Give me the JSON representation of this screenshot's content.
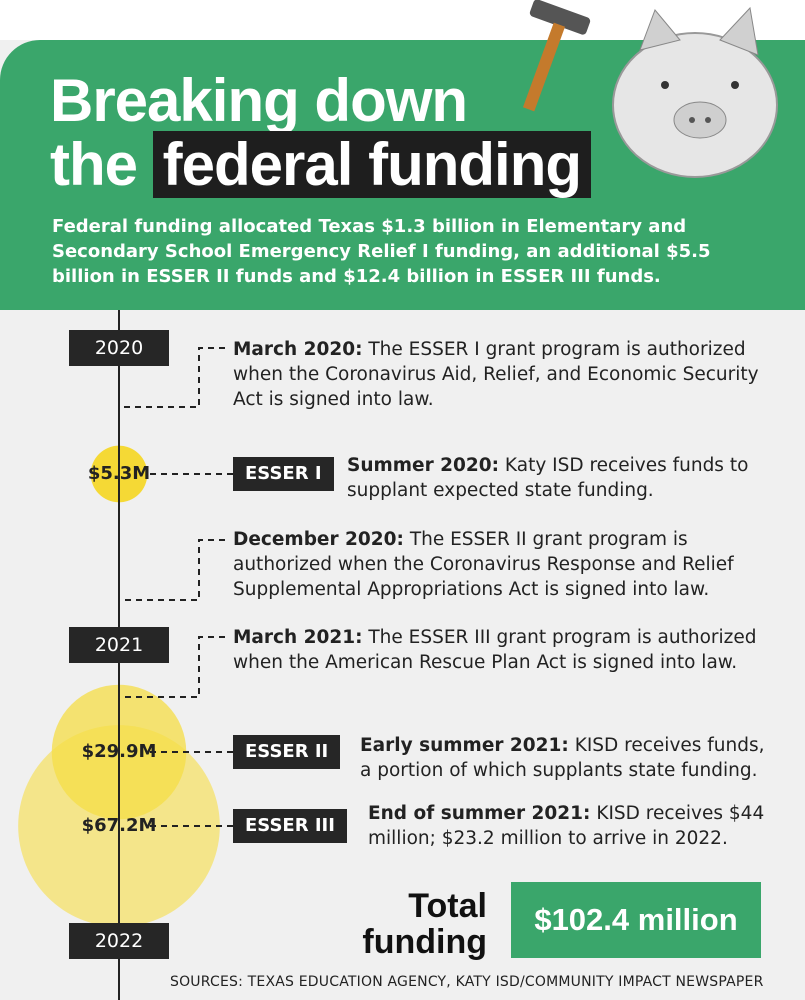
{
  "header": {
    "title_line1": "Breaking down",
    "title_the": "the",
    "title_highlight": "federal funding",
    "intro": "Federal funding allocated Texas $1.3 billion in Elementary and Secondary School Emergency Relief I funding, an additional $5.5 billion in ESSER II funds and $12.4 billion in ESSER III funds."
  },
  "timeline": {
    "years": [
      "2020",
      "2021",
      "2022"
    ],
    "events": [
      {
        "lead": "March 2020:",
        "text": " The ESSER I grant program is authorized when the Coronavirus Aid, Relief, and Economic Security Act is signed into law."
      },
      {
        "lead": "Summer 2020:",
        "text": " Katy ISD receives funds to supplant expected state funding."
      },
      {
        "lead": "December 2020:",
        "text": " The ESSER II grant program is authorized when the Coronavirus Response and Relief Supplemental Appropriations Act is signed into law."
      },
      {
        "lead": "March 2021:",
        "text": " The ESSER III grant program is authorized when the American Rescue Plan Act is signed into law."
      },
      {
        "lead": "Early summer 2021:",
        "text": " KISD receives funds, a portion of which supplants state funding."
      },
      {
        "lead": "End of summer 2021:",
        "text": " KISD receives $44 million; $23.2 million to arrive in 2022."
      }
    ],
    "grants": [
      {
        "badge": "ESSER I",
        "amount": "$5.3M",
        "value": 5.3
      },
      {
        "badge": "ESSER II",
        "amount": "$29.9M",
        "value": 29.9
      },
      {
        "badge": "ESSER III",
        "amount": "$67.2M",
        "value": 67.2
      }
    ]
  },
  "total": {
    "label": "Total funding",
    "amount": "$102.4 million"
  },
  "sources": "SOURCES: TEXAS EDUCATION AGENCY, KATY ISD/COMMUNITY IMPACT NEWSPAPER"
}
